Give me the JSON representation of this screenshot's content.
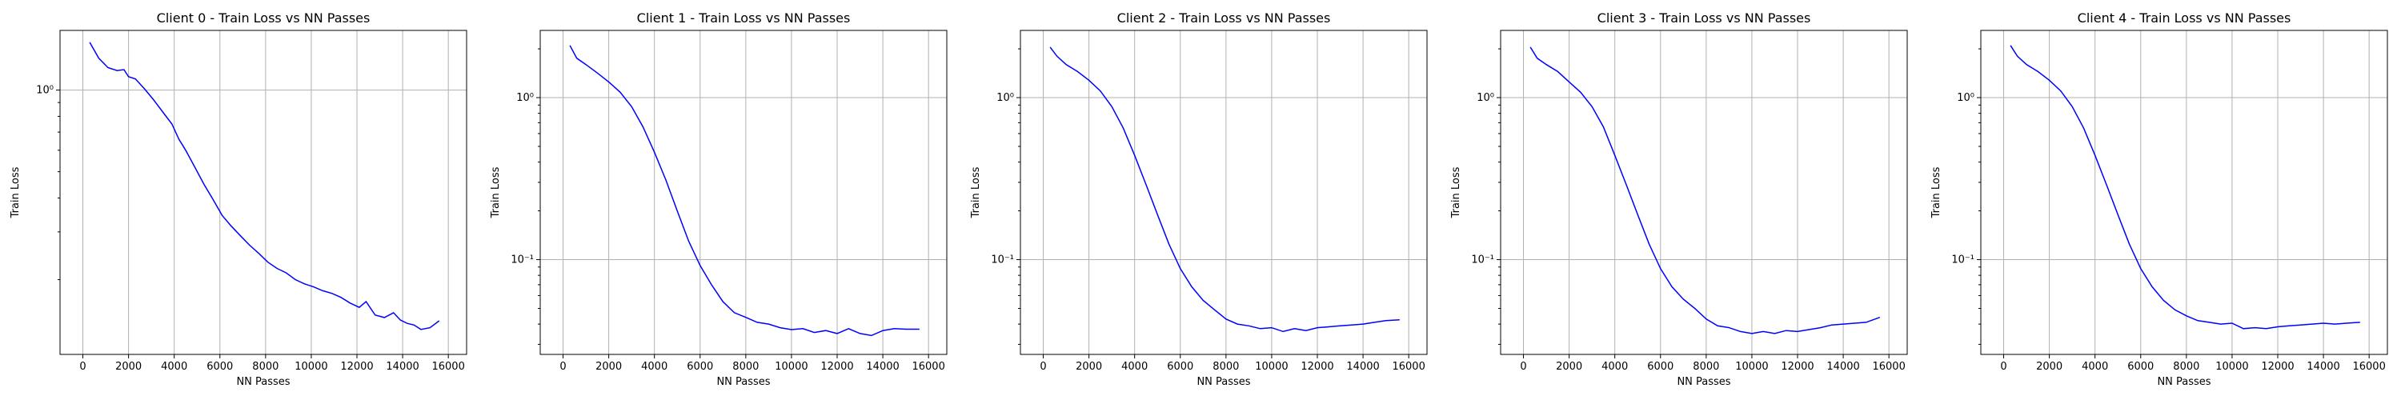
{
  "chart_data": [
    {
      "type": "line",
      "title": "Client 0 - Train Loss vs NN Passes",
      "xlabel": "NN Passes",
      "ylabel": "Train Loss",
      "yscale": "log",
      "xlim": [
        -1000,
        16800
      ],
      "ylim": [
        0.106,
        1.66
      ],
      "xticks": [
        0,
        2000,
        4000,
        6000,
        8000,
        10000,
        12000,
        14000,
        16000
      ],
      "xtick_labels": [
        "0",
        "2000",
        "4000",
        "6000",
        "8000",
        "10000",
        "12000",
        "14000",
        "16000"
      ],
      "yticks": [
        1
      ],
      "ytick_labels": [
        "10⁰"
      ],
      "minor_yticks": [
        0.2,
        0.3,
        0.4,
        0.5,
        0.6,
        0.7,
        0.8,
        0.9
      ],
      "grid": true,
      "color": "#0000ff",
      "x": [
        300,
        700,
        1100,
        1500,
        1800,
        2000,
        2300,
        2700,
        3100,
        3500,
        3900,
        4200,
        4500,
        4900,
        5300,
        5700,
        6100,
        6500,
        6900,
        7300,
        7700,
        8100,
        8500,
        8900,
        9300,
        9700,
        10100,
        10500,
        10900,
        11300,
        11700,
        12100,
        12400,
        12800,
        13200,
        13600,
        13900,
        14200,
        14500,
        14800,
        15200,
        15600
      ],
      "y": [
        1.5,
        1.31,
        1.21,
        1.18,
        1.19,
        1.12,
        1.1,
        1.01,
        0.92,
        0.83,
        0.75,
        0.66,
        0.6,
        0.52,
        0.45,
        0.395,
        0.345,
        0.315,
        0.29,
        0.268,
        0.25,
        0.232,
        0.22,
        0.212,
        0.2,
        0.193,
        0.188,
        0.182,
        0.178,
        0.172,
        0.164,
        0.158,
        0.166,
        0.148,
        0.145,
        0.151,
        0.142,
        0.138,
        0.136,
        0.131,
        0.133,
        0.141
      ]
    },
    {
      "type": "line",
      "title": "Client 1 - Train Loss vs NN Passes",
      "xlabel": "NN Passes",
      "ylabel": "Train Loss",
      "yscale": "log",
      "xlim": [
        -1000,
        16800
      ],
      "ylim": [
        0.026,
        2.6
      ],
      "xticks": [
        0,
        2000,
        4000,
        6000,
        8000,
        10000,
        12000,
        14000,
        16000
      ],
      "xtick_labels": [
        "0",
        "2000",
        "4000",
        "6000",
        "8000",
        "10000",
        "12000",
        "14000",
        "16000"
      ],
      "yticks": [
        0.1,
        1
      ],
      "ytick_labels": [
        "10⁻¹",
        "10⁰"
      ],
      "minor_yticks": [
        0.03,
        0.04,
        0.05,
        0.06,
        0.07,
        0.08,
        0.09,
        0.2,
        0.3,
        0.4,
        0.5,
        0.6,
        0.7,
        0.8,
        0.9,
        2
      ],
      "grid": true,
      "color": "#0000ff",
      "x": [
        300,
        600,
        1000,
        1500,
        2000,
        2500,
        3000,
        3500,
        4000,
        4500,
        5000,
        5500,
        6000,
        6500,
        7000,
        7500,
        8000,
        8500,
        9000,
        9500,
        10000,
        10500,
        11000,
        11500,
        12000,
        12500,
        13000,
        13500,
        14000,
        14500,
        15000,
        15600
      ],
      "y": [
        2.1,
        1.75,
        1.6,
        1.42,
        1.25,
        1.08,
        0.88,
        0.66,
        0.46,
        0.31,
        0.2,
        0.13,
        0.092,
        0.07,
        0.055,
        0.047,
        0.044,
        0.041,
        0.04,
        0.038,
        0.037,
        0.0375,
        0.0355,
        0.0365,
        0.035,
        0.0375,
        0.035,
        0.034,
        0.0365,
        0.0375,
        0.0372,
        0.0372
      ]
    },
    {
      "type": "line",
      "title": "Client 2 - Train Loss vs NN Passes",
      "xlabel": "NN Passes",
      "ylabel": "Train Loss",
      "yscale": "log",
      "xlim": [
        -1000,
        16800
      ],
      "ylim": [
        0.026,
        2.6
      ],
      "xticks": [
        0,
        2000,
        4000,
        6000,
        8000,
        10000,
        12000,
        14000,
        16000
      ],
      "xtick_labels": [
        "0",
        "2000",
        "4000",
        "6000",
        "8000",
        "10000",
        "12000",
        "14000",
        "16000"
      ],
      "yticks": [
        0.1,
        1
      ],
      "ytick_labels": [
        "10⁻¹",
        "10⁰"
      ],
      "minor_yticks": [
        0.03,
        0.04,
        0.05,
        0.06,
        0.07,
        0.08,
        0.09,
        0.2,
        0.3,
        0.4,
        0.5,
        0.6,
        0.7,
        0.8,
        0.9,
        2
      ],
      "grid": true,
      "color": "#0000ff",
      "x": [
        300,
        600,
        1000,
        1500,
        2000,
        2500,
        3000,
        3500,
        4000,
        4500,
        5000,
        5500,
        6000,
        6500,
        7000,
        7500,
        8000,
        8500,
        9000,
        9500,
        10000,
        10500,
        11000,
        11500,
        12000,
        12500,
        13000,
        13500,
        14000,
        14500,
        15000,
        15600
      ],
      "y": [
        2.05,
        1.8,
        1.6,
        1.45,
        1.28,
        1.1,
        0.88,
        0.65,
        0.44,
        0.29,
        0.19,
        0.125,
        0.088,
        0.068,
        0.056,
        0.049,
        0.043,
        0.04,
        0.039,
        0.0375,
        0.038,
        0.036,
        0.0375,
        0.0365,
        0.038,
        0.0385,
        0.039,
        0.0395,
        0.04,
        0.041,
        0.042,
        0.0425
      ]
    },
    {
      "type": "line",
      "title": "Client 3 - Train Loss vs NN Passes",
      "xlabel": "NN Passes",
      "ylabel": "Train Loss",
      "yscale": "log",
      "xlim": [
        -1000,
        16800
      ],
      "ylim": [
        0.026,
        2.6
      ],
      "xticks": [
        0,
        2000,
        4000,
        6000,
        8000,
        10000,
        12000,
        14000,
        16000
      ],
      "xtick_labels": [
        "0",
        "2000",
        "4000",
        "6000",
        "8000",
        "10000",
        "12000",
        "14000",
        "16000"
      ],
      "yticks": [
        0.1,
        1
      ],
      "ytick_labels": [
        "10⁻¹",
        "10⁰"
      ],
      "minor_yticks": [
        0.03,
        0.04,
        0.05,
        0.06,
        0.07,
        0.08,
        0.09,
        0.2,
        0.3,
        0.4,
        0.5,
        0.6,
        0.7,
        0.8,
        0.9,
        2
      ],
      "grid": true,
      "color": "#0000ff",
      "x": [
        300,
        600,
        1000,
        1500,
        2000,
        2500,
        3000,
        3500,
        4000,
        4500,
        5000,
        5500,
        6000,
        6500,
        7000,
        7500,
        8000,
        8500,
        9000,
        9500,
        10000,
        10500,
        11000,
        11500,
        12000,
        12500,
        13000,
        13500,
        14000,
        14500,
        15000,
        15600
      ],
      "y": [
        2.05,
        1.75,
        1.6,
        1.45,
        1.25,
        1.08,
        0.88,
        0.66,
        0.44,
        0.29,
        0.19,
        0.125,
        0.088,
        0.068,
        0.057,
        0.05,
        0.043,
        0.039,
        0.038,
        0.036,
        0.035,
        0.036,
        0.035,
        0.0365,
        0.036,
        0.037,
        0.038,
        0.0395,
        0.04,
        0.0405,
        0.041,
        0.044
      ]
    },
    {
      "type": "line",
      "title": "Client 4 - Train Loss vs NN Passes",
      "xlabel": "NN Passes",
      "ylabel": "Train Loss",
      "yscale": "log",
      "xlim": [
        -1000,
        16800
      ],
      "ylim": [
        0.026,
        2.6
      ],
      "xticks": [
        0,
        2000,
        4000,
        6000,
        8000,
        10000,
        12000,
        14000,
        16000
      ],
      "xtick_labels": [
        "0",
        "2000",
        "4000",
        "6000",
        "8000",
        "10000",
        "12000",
        "14000",
        "16000"
      ],
      "yticks": [
        0.1,
        1
      ],
      "ytick_labels": [
        "10⁻¹",
        "10⁰"
      ],
      "minor_yticks": [
        0.03,
        0.04,
        0.05,
        0.06,
        0.07,
        0.08,
        0.09,
        0.2,
        0.3,
        0.4,
        0.5,
        0.6,
        0.7,
        0.8,
        0.9,
        2
      ],
      "grid": true,
      "color": "#0000ff",
      "x": [
        300,
        600,
        1000,
        1500,
        2000,
        2500,
        3000,
        3500,
        4000,
        4500,
        5000,
        5500,
        6000,
        6500,
        7000,
        7500,
        8000,
        8500,
        9000,
        9500,
        10000,
        10500,
        11000,
        11500,
        12000,
        12500,
        13000,
        13500,
        14000,
        14500,
        15000,
        15600
      ],
      "y": [
        2.1,
        1.8,
        1.6,
        1.45,
        1.28,
        1.1,
        0.88,
        0.65,
        0.44,
        0.29,
        0.19,
        0.125,
        0.088,
        0.068,
        0.056,
        0.049,
        0.045,
        0.042,
        0.041,
        0.04,
        0.0405,
        0.0375,
        0.038,
        0.0375,
        0.0385,
        0.039,
        0.0395,
        0.04,
        0.0405,
        0.04,
        0.0405,
        0.041
      ]
    }
  ]
}
